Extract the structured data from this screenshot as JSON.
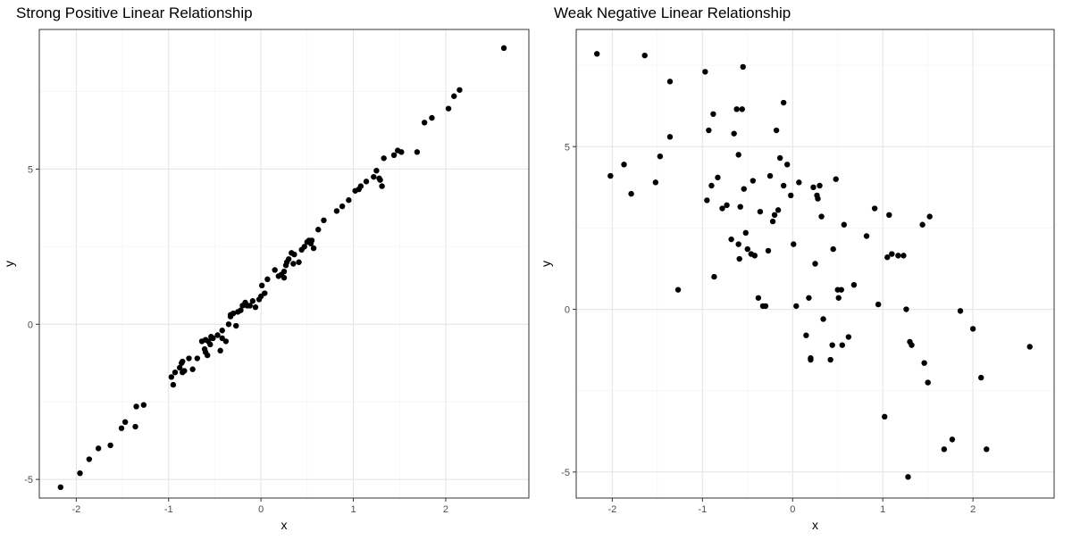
{
  "chart_data": [
    {
      "type": "scatter",
      "title": "Strong Positive Linear Relationship",
      "xlabel": "x",
      "ylabel": "y",
      "xlim": [
        -2.4,
        2.9
      ],
      "ylim": [
        -5.6,
        9.5
      ],
      "x_ticks": [
        -2,
        -1,
        0,
        1,
        2
      ],
      "x_tick_labels": [
        "-2",
        "-1",
        "0",
        "1",
        "2"
      ],
      "y_ticks": [
        -5,
        0,
        5
      ],
      "y_tick_labels": [
        "-5",
        "0",
        "5"
      ],
      "grid": true,
      "point_color": "#000000",
      "x": [
        -2.17,
        -1.96,
        -1.86,
        -1.76,
        -1.63,
        -1.51,
        -1.47,
        -1.36,
        -1.35,
        -1.27,
        -0.97,
        -0.95,
        -0.93,
        -0.88,
        -0.86,
        -0.85,
        -0.83,
        -0.78,
        -0.74,
        -0.69,
        -0.64,
        -0.61,
        -0.58,
        -0.57,
        -0.55,
        -0.54,
        -0.52,
        -0.47,
        -0.44,
        -0.42,
        -0.38,
        -0.35,
        -0.33,
        -0.3,
        -0.27,
        -0.25,
        -0.22,
        -0.2,
        -0.17,
        -0.15,
        -0.12,
        -0.09,
        -0.06,
        -0.02,
        0.01,
        0.04,
        0.07,
        0.15,
        0.19,
        0.22,
        0.25,
        0.27,
        0.28,
        0.3,
        0.33,
        0.36,
        0.41,
        0.44,
        0.47,
        0.5,
        0.52,
        0.54,
        0.57,
        0.62,
        0.68,
        0.82,
        0.88,
        0.95,
        1.02,
        1.06,
        1.08,
        1.14,
        1.22,
        1.25,
        1.28,
        1.29,
        1.31,
        1.33,
        1.44,
        1.48,
        1.52,
        1.69,
        1.77,
        1.85,
        2.03,
        2.09,
        2.15,
        2.63,
        0.35,
        0.55,
        0.0,
        -0.33,
        0.25,
        -0.6,
        -0.42,
        -0.6,
        -0.85
      ],
      "y": [
        -5.25,
        -4.8,
        -4.35,
        -4.0,
        -3.9,
        -3.35,
        -3.15,
        -3.3,
        -2.65,
        -2.6,
        -1.7,
        -1.95,
        -1.55,
        -1.4,
        -1.25,
        -1.55,
        -1.5,
        -1.1,
        -1.45,
        -1.1,
        -0.55,
        -0.8,
        -1.0,
        -0.55,
        -0.65,
        -0.4,
        -0.45,
        -0.35,
        -0.85,
        -0.45,
        -0.55,
        0.0,
        0.3,
        0.35,
        -0.05,
        0.4,
        0.45,
        0.6,
        0.7,
        0.6,
        0.6,
        0.75,
        0.55,
        0.8,
        1.25,
        1.0,
        1.45,
        1.75,
        1.55,
        1.6,
        1.5,
        1.9,
        2.0,
        2.1,
        2.3,
        2.25,
        2.0,
        2.4,
        2.5,
        2.65,
        2.7,
        2.6,
        2.45,
        3.05,
        3.35,
        3.65,
        3.8,
        4.0,
        4.3,
        4.35,
        4.45,
        4.6,
        4.75,
        4.95,
        4.7,
        4.65,
        4.45,
        5.35,
        5.45,
        5.6,
        5.55,
        5.55,
        6.5,
        6.65,
        6.95,
        7.35,
        7.55,
        8.9,
        1.95,
        2.7,
        0.9,
        0.25,
        1.7,
        -0.5,
        -0.2,
        -0.9,
        -1.2
      ]
    },
    {
      "type": "scatter",
      "title": "Weak Negative Linear Relationship",
      "xlabel": "x",
      "ylabel": "y",
      "xlim": [
        -2.4,
        2.9
      ],
      "ylim": [
        -5.8,
        8.6
      ],
      "x_ticks": [
        -2,
        -1,
        0,
        1,
        2
      ],
      "x_tick_labels": [
        "-2",
        "-1",
        "0",
        "1",
        "2"
      ],
      "y_ticks": [
        -5,
        0,
        5
      ],
      "y_tick_labels": [
        "-5",
        "0",
        "5"
      ],
      "grid": true,
      "point_color": "#000000",
      "x": [
        -2.17,
        -1.64,
        -1.36,
        -0.97,
        -0.55,
        -0.1,
        -2.02,
        -1.87,
        -1.79,
        -1.52,
        -1.47,
        -1.36,
        -1.27,
        -0.95,
        -0.93,
        -0.9,
        -0.88,
        -0.87,
        -0.83,
        -0.78,
        -0.73,
        -0.68,
        -0.62,
        -0.6,
        -0.59,
        -0.58,
        -0.56,
        -0.54,
        -0.52,
        -0.5,
        -0.46,
        -0.44,
        -0.42,
        -0.38,
        -0.36,
        -0.33,
        -0.3,
        -0.27,
        -0.25,
        -0.22,
        -0.2,
        -0.18,
        -0.16,
        -0.14,
        -0.1,
        -0.06,
        -0.02,
        0.01,
        0.04,
        0.07,
        0.15,
        0.18,
        0.2,
        0.23,
        0.25,
        0.27,
        0.28,
        0.3,
        0.32,
        0.34,
        0.42,
        0.44,
        0.45,
        0.48,
        0.5,
        0.51,
        0.54,
        0.55,
        0.57,
        0.62,
        0.68,
        0.82,
        0.91,
        0.95,
        1.02,
        1.07,
        1.1,
        1.17,
        1.23,
        1.26,
        1.3,
        1.32,
        1.44,
        1.46,
        1.5,
        1.52,
        1.68,
        1.77,
        1.86,
        2.0,
        2.09,
        2.15,
        2.63,
        1.28,
        1.05,
        0.2,
        -0.6,
        -0.65
      ],
      "y": [
        7.85,
        7.8,
        7.0,
        7.3,
        7.45,
        6.35,
        4.1,
        4.45,
        3.55,
        3.9,
        4.7,
        5.3,
        0.6,
        3.35,
        5.5,
        3.8,
        6.0,
        1.0,
        4.05,
        3.1,
        3.2,
        2.15,
        6.15,
        4.75,
        1.55,
        3.15,
        6.15,
        3.7,
        2.35,
        1.85,
        1.7,
        3.95,
        1.65,
        0.35,
        3.0,
        0.1,
        0.1,
        1.8,
        4.1,
        2.7,
        2.9,
        5.5,
        3.05,
        4.65,
        3.8,
        4.45,
        3.5,
        2.0,
        0.1,
        3.9,
        -0.8,
        0.35,
        -1.55,
        3.75,
        1.4,
        3.5,
        3.4,
        3.8,
        2.85,
        -0.3,
        -1.55,
        -1.1,
        1.85,
        4.0,
        0.6,
        0.35,
        0.6,
        -1.1,
        2.6,
        -0.85,
        0.75,
        2.25,
        3.1,
        0.15,
        -3.3,
        2.9,
        1.7,
        1.65,
        1.65,
        0.0,
        -1.0,
        -1.1,
        2.6,
        -1.65,
        -2.25,
        2.85,
        -4.3,
        -4.0,
        -0.05,
        -0.6,
        -2.1,
        -4.3,
        -1.15,
        -5.15,
        1.6,
        -1.5,
        2.0,
        5.4
      ]
    }
  ]
}
